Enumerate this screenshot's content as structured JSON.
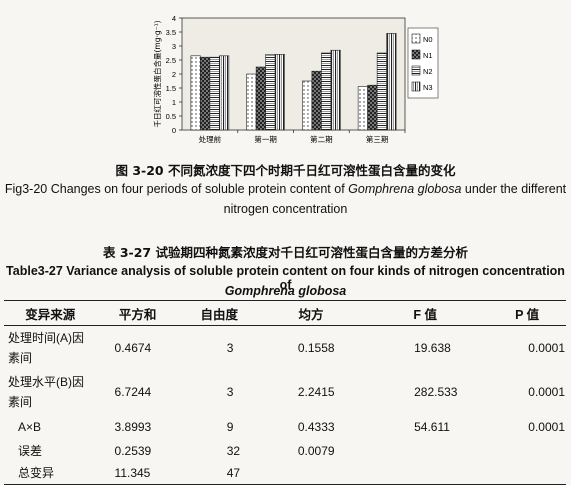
{
  "chart_data": {
    "type": "bar",
    "ylabel": "千日红可溶性蛋白含量(mg·g⁻¹)",
    "ylim": [
      0,
      4
    ],
    "yticks": [
      0,
      0.5,
      1,
      1.5,
      2,
      2.5,
      3,
      3.5,
      4
    ],
    "categories": [
      "处理前",
      "第一期",
      "第二期",
      "第三期"
    ],
    "legend_position": "right",
    "series": [
      {
        "name": "N0",
        "values": [
          2.65,
          2.0,
          1.75,
          1.55
        ],
        "pattern": "dots"
      },
      {
        "name": "N1",
        "values": [
          2.6,
          2.25,
          2.1,
          1.6
        ],
        "pattern": "dense"
      },
      {
        "name": "N2",
        "values": [
          2.6,
          2.7,
          2.75,
          2.75
        ],
        "pattern": "hlines"
      },
      {
        "name": "N3",
        "values": [
          2.65,
          2.7,
          2.85,
          3.45
        ],
        "pattern": "vlines"
      }
    ]
  },
  "figure_caption_cn": "图 3-20 不同氮浓度下四个时期千日红可溶性蛋白含量的变化",
  "figure_caption_en_1": "Fig3-20 Changes on four periods of soluble protein content of Gomphrena globosa under the different",
  "figure_caption_en_2": "nitrogen concentration",
  "table_caption_cn": "表 3-27 试验期四种氮素浓度对千日红可溶性蛋白含量的方差分析",
  "table_caption_en_1": "Table3-27 Variance analysis of soluble protein content on four kinds of nitrogen concentration of",
  "table_caption_en_2": "Gomphrena globosa",
  "table": {
    "headers": [
      "变异来源",
      "平方和",
      "自由度",
      "均方",
      "F 值",
      "P 值"
    ],
    "rows": [
      [
        "处理时间(A)因素间",
        "0.4674",
        "3",
        "0.1558",
        "19.638",
        "0.0001"
      ],
      [
        "处理水平(B)因素间",
        "6.7244",
        "3",
        "2.2415",
        "282.533",
        "0.0001"
      ],
      [
        "A×B",
        "3.8993",
        "9",
        "0.4333",
        "54.611",
        "0.0001"
      ],
      [
        "误差",
        "0.2539",
        "32",
        "0.0079",
        "",
        ""
      ],
      [
        "总变异",
        "11.345",
        "47",
        "",
        "",
        ""
      ]
    ]
  }
}
